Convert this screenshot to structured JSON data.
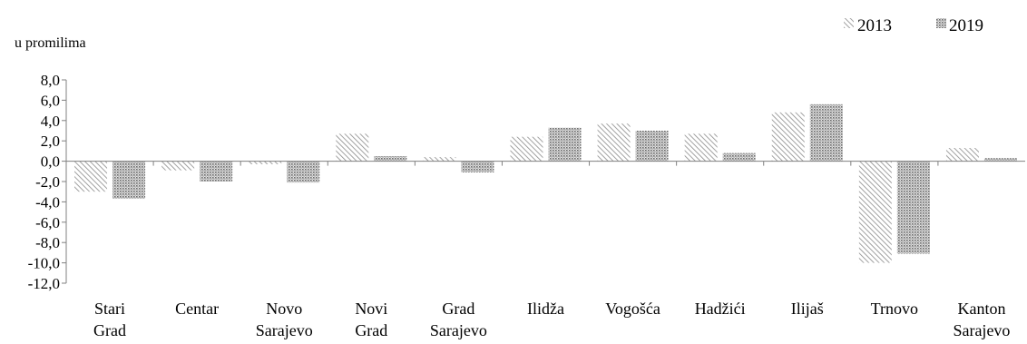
{
  "chart_data": {
    "type": "bar",
    "ylabel": "u promilima",
    "ylim": [
      -12,
      8
    ],
    "yticks": [
      "8,0",
      "6,0",
      "4,0",
      "2,0",
      "0,0",
      "-2,0",
      "-4,0",
      "-6,0",
      "-8,0",
      "-10,0",
      "-12,0"
    ],
    "categories": [
      [
        "Stari",
        "Grad"
      ],
      [
        "Centar"
      ],
      [
        "Novo",
        "Sarajevo"
      ],
      [
        "Novi",
        "Grad"
      ],
      [
        "Grad",
        "Sarajevo"
      ],
      [
        "Ilidža"
      ],
      [
        "Vogošća"
      ],
      [
        "Hadžići"
      ],
      [
        "Ilijaš"
      ],
      [
        "Trnovo"
      ],
      [
        "Kanton",
        "Sarajevo"
      ]
    ],
    "series": [
      {
        "name": "2013",
        "pattern": "diagonal-hatch",
        "color": "#8c8c8c",
        "values": [
          -3.0,
          -0.9,
          -0.3,
          2.7,
          0.4,
          2.4,
          3.7,
          2.7,
          4.8,
          -10.0,
          1.3
        ]
      },
      {
        "name": "2019",
        "pattern": "dotted-fill",
        "color": "#7a7a7a",
        "values": [
          -3.7,
          -2.0,
          -2.1,
          0.5,
          -1.1,
          3.3,
          3.0,
          0.8,
          5.6,
          -9.1,
          0.3
        ]
      }
    ],
    "grid": false,
    "legend_position": "top-right"
  }
}
